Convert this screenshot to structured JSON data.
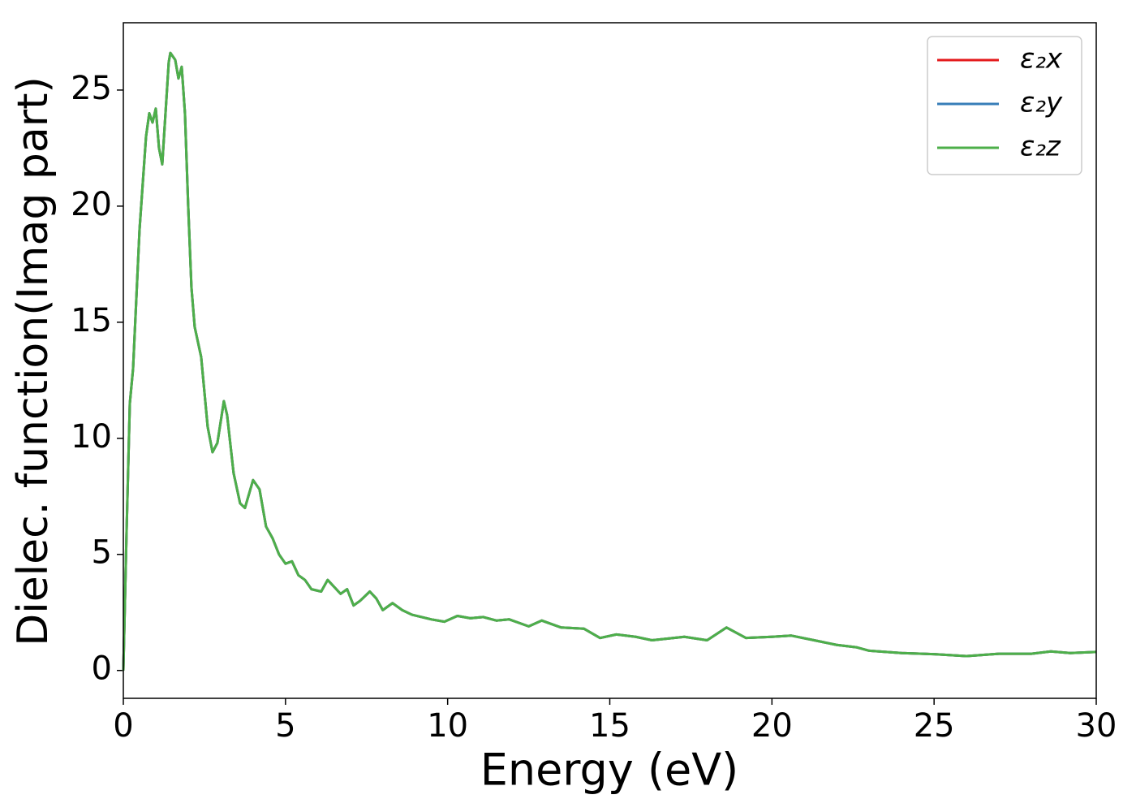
{
  "chart_data": {
    "type": "line",
    "xlabel": "Energy (eV)",
    "ylabel": "Dielec. function(Imag part)",
    "x": [
      0,
      0.1,
      0.2,
      0.3,
      0.4,
      0.5,
      0.6,
      0.7,
      0.8,
      0.9,
      1.0,
      1.1,
      1.2,
      1.3,
      1.4,
      1.45,
      1.6,
      1.7,
      1.8,
      1.9,
      2.0,
      2.1,
      2.2,
      2.4,
      2.6,
      2.75,
      2.9,
      3.1,
      3.2,
      3.4,
      3.6,
      3.75,
      4.0,
      4.2,
      4.4,
      4.6,
      4.8,
      5.0,
      5.2,
      5.4,
      5.6,
      5.8,
      6.1,
      6.3,
      6.5,
      6.7,
      6.9,
      7.1,
      7.3,
      7.6,
      7.8,
      8.0,
      8.3,
      8.6,
      8.9,
      9.2,
      9.5,
      9.9,
      10.3,
      10.7,
      11.1,
      11.5,
      11.9,
      12.5,
      12.9,
      13.5,
      14.2,
      14.7,
      15.2,
      15.8,
      16.3,
      17.3,
      18.0,
      18.6,
      19.2,
      20.0,
      20.6,
      21.3,
      22.0,
      22.6,
      23.0,
      24.0,
      25.0,
      26.0,
      27.0,
      28.0,
      28.6,
      29.2,
      30.0
    ],
    "series": [
      {
        "name": "ε₂x",
        "color": "#e41a1c",
        "values": [
          0,
          6,
          11.5,
          13,
          16,
          19,
          21,
          23,
          24,
          23.6,
          24.2,
          22.5,
          21.8,
          24,
          26.2,
          26.6,
          26.3,
          25.5,
          26,
          24,
          20,
          16.5,
          14.8,
          13.5,
          10.5,
          9.4,
          9.8,
          11.6,
          11,
          8.5,
          7.2,
          7,
          8.2,
          7.8,
          6.2,
          5.7,
          5,
          4.6,
          4.7,
          4.1,
          3.9,
          3.5,
          3.4,
          3.9,
          3.6,
          3.3,
          3.5,
          2.8,
          3.0,
          3.4,
          3.1,
          2.6,
          2.9,
          2.6,
          2.4,
          2.3,
          2.2,
          2.1,
          2.35,
          2.25,
          2.3,
          2.15,
          2.2,
          1.9,
          2.15,
          1.85,
          1.8,
          1.4,
          1.55,
          1.45,
          1.3,
          1.45,
          1.3,
          1.85,
          1.4,
          1.45,
          1.5,
          1.3,
          1.1,
          1.0,
          0.85,
          0.75,
          0.7,
          0.62,
          0.72,
          0.72,
          0.82,
          0.75,
          0.8
        ]
      },
      {
        "name": "ε₂y",
        "color": "#377eb8",
        "values": [
          0,
          6,
          11.5,
          13,
          16,
          19,
          21,
          23,
          24,
          23.6,
          24.2,
          22.5,
          21.8,
          24,
          26.2,
          26.6,
          26.3,
          25.5,
          26,
          24,
          20,
          16.5,
          14.8,
          13.5,
          10.5,
          9.4,
          9.8,
          11.6,
          11,
          8.5,
          7.2,
          7,
          8.2,
          7.8,
          6.2,
          5.7,
          5,
          4.6,
          4.7,
          4.1,
          3.9,
          3.5,
          3.4,
          3.9,
          3.6,
          3.3,
          3.5,
          2.8,
          3.0,
          3.4,
          3.1,
          2.6,
          2.9,
          2.6,
          2.4,
          2.3,
          2.2,
          2.1,
          2.35,
          2.25,
          2.3,
          2.15,
          2.2,
          1.9,
          2.15,
          1.85,
          1.8,
          1.4,
          1.55,
          1.45,
          1.3,
          1.45,
          1.3,
          1.85,
          1.4,
          1.45,
          1.5,
          1.3,
          1.1,
          1.0,
          0.85,
          0.75,
          0.7,
          0.62,
          0.72,
          0.72,
          0.82,
          0.75,
          0.8
        ]
      },
      {
        "name": "ε₂z",
        "color": "#4daf4a",
        "values": [
          0,
          6,
          11.5,
          13,
          16,
          19,
          21,
          23,
          24,
          23.6,
          24.2,
          22.5,
          21.8,
          24,
          26.2,
          26.6,
          26.3,
          25.5,
          26,
          24,
          20,
          16.5,
          14.8,
          13.5,
          10.5,
          9.4,
          9.8,
          11.6,
          11,
          8.5,
          7.2,
          7,
          8.2,
          7.8,
          6.2,
          5.7,
          5,
          4.6,
          4.7,
          4.1,
          3.9,
          3.5,
          3.4,
          3.9,
          3.6,
          3.3,
          3.5,
          2.8,
          3.0,
          3.4,
          3.1,
          2.6,
          2.9,
          2.6,
          2.4,
          2.3,
          2.2,
          2.1,
          2.35,
          2.25,
          2.3,
          2.15,
          2.2,
          1.9,
          2.15,
          1.85,
          1.8,
          1.4,
          1.55,
          1.45,
          1.3,
          1.45,
          1.3,
          1.85,
          1.4,
          1.45,
          1.5,
          1.3,
          1.1,
          1.0,
          0.85,
          0.75,
          0.7,
          0.62,
          0.72,
          0.72,
          0.82,
          0.75,
          0.8
        ]
      }
    ],
    "xlim": [
      0,
      30
    ],
    "xticks": [
      0,
      5,
      10,
      15,
      20,
      25,
      30
    ],
    "ylim": [
      -1.2,
      27.9
    ],
    "yticks": [
      0,
      5,
      10,
      15,
      20,
      25
    ],
    "grid": false,
    "legend": "upper right"
  }
}
